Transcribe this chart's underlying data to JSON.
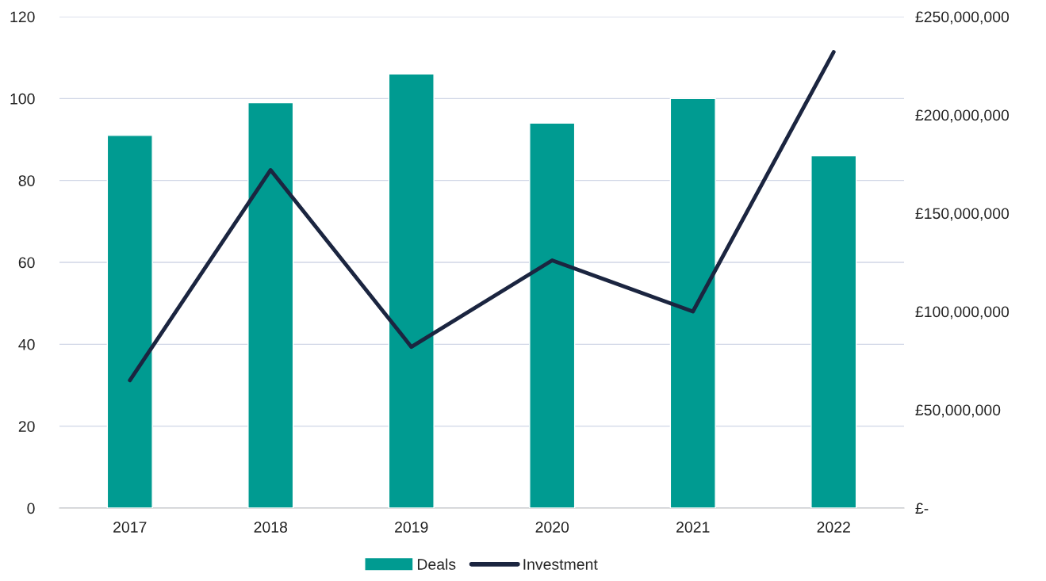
{
  "chart_data": {
    "type": "bar",
    "categories": [
      "2017",
      "2018",
      "2019",
      "2020",
      "2021",
      "2022"
    ],
    "series": [
      {
        "name": "Deals",
        "color": "#009b91",
        "values": [
          91,
          99,
          106,
          94,
          100,
          86
        ]
      },
      {
        "name": "Investment",
        "type": "line",
        "axis": "y2",
        "color": "#1b2540",
        "values": [
          65000000,
          172000000,
          82000000,
          126000000,
          100000000,
          232000000
        ]
      }
    ],
    "ylim": [
      0,
      120
    ],
    "yticks": [
      0,
      20,
      40,
      60,
      80,
      100,
      120
    ],
    "y2lim": [
      0,
      250000000
    ],
    "y2ticks": [
      {
        "value": 0,
        "label": "£-"
      },
      {
        "value": 50000000,
        "label": "£50,000,000"
      },
      {
        "value": 100000000,
        "label": "£100,000,000"
      },
      {
        "value": 150000000,
        "label": "£150,000,000"
      },
      {
        "value": 200000000,
        "label": "£200,000,000"
      },
      {
        "value": 250000000,
        "label": "£250,000,000"
      }
    ],
    "grid": "y",
    "legend": "bottom",
    "marker": "none",
    "line_style": "solid"
  }
}
